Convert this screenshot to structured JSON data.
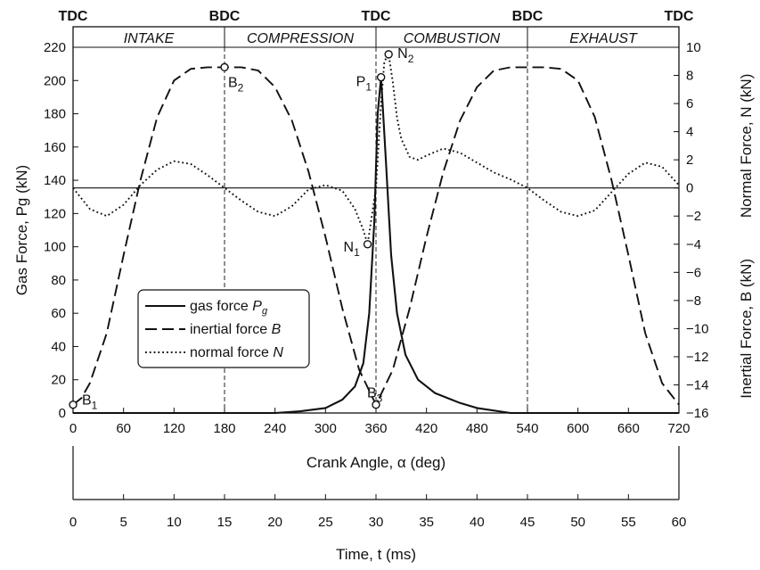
{
  "chart_data": {
    "type": "line",
    "x_primary": {
      "label": "Crank Angle, α (deg)",
      "range": [
        0,
        720
      ],
      "ticks": [
        0,
        60,
        120,
        180,
        240,
        300,
        360,
        420,
        480,
        540,
        600,
        660,
        720
      ]
    },
    "x_secondary": {
      "label": "Time, t (ms)",
      "range": [
        0,
        60
      ],
      "ticks": [
        0,
        5,
        10,
        15,
        20,
        25,
        30,
        35,
        40,
        45,
        50,
        55,
        60
      ]
    },
    "y_left": {
      "label": "Gas Force, Pg (kN)",
      "range": [
        0,
        220
      ],
      "ticks": [
        0,
        20,
        40,
        60,
        80,
        100,
        120,
        140,
        160,
        180,
        200,
        220
      ]
    },
    "y_right_normal": {
      "label": "Normal Force, N (kN)",
      "range": [
        -16,
        10
      ],
      "ticks": [
        10,
        8,
        6,
        4,
        2,
        0,
        -2,
        -4,
        -6,
        -8,
        -10,
        -12,
        -14,
        -16
      ]
    },
    "y_right_inertial": {
      "label": "Inertial Force, B (kN)"
    },
    "dead_centers": [
      {
        "label": "TDC",
        "at": 0
      },
      {
        "label": "BDC",
        "at": 180
      },
      {
        "label": "TDC",
        "at": 360
      },
      {
        "label": "BDC",
        "at": 540
      },
      {
        "label": "TDC",
        "at": 720
      }
    ],
    "phases": [
      {
        "label": "INTAKE",
        "from": 0,
        "to": 180
      },
      {
        "label": "COMPRESSION",
        "from": 180,
        "to": 360
      },
      {
        "label": "COMBUSTION",
        "from": 360,
        "to": 540
      },
      {
        "label": "EXHAUST",
        "from": 540,
        "to": 720
      }
    ],
    "series": [
      {
        "name": "gas force Pg",
        "style": "solid",
        "x": [
          0,
          180,
          240,
          270,
          300,
          320,
          335,
          345,
          352,
          358,
          362,
          366,
          372,
          378,
          385,
          395,
          410,
          430,
          460,
          480,
          520,
          540,
          720
        ],
        "y": [
          0,
          0,
          0,
          1,
          3,
          8,
          16,
          30,
          60,
          115,
          180,
          202,
          150,
          95,
          60,
          35,
          20,
          12,
          6,
          3,
          0,
          0,
          0
        ]
      },
      {
        "name": "inertial force B",
        "style": "dashed",
        "x": [
          0,
          10,
          20,
          40,
          60,
          80,
          100,
          120,
          140,
          160,
          180,
          200,
          220,
          240,
          260,
          280,
          300,
          320,
          340,
          360,
          380,
          400,
          420,
          440,
          460,
          480,
          500,
          520,
          540,
          560,
          580,
          600,
          620,
          640,
          660,
          680,
          700,
          720
        ],
        "y": [
          5,
          9,
          18,
          48,
          95,
          140,
          178,
          200,
          207,
          208,
          208,
          208,
          206,
          196,
          176,
          145,
          106,
          63,
          26,
          5,
          26,
          63,
          106,
          145,
          176,
          196,
          206,
          208,
          208,
          208,
          207,
          200,
          178,
          140,
          95,
          48,
          18,
          5
        ]
      },
      {
        "name": "normal force N",
        "style": "dotted",
        "x": [
          0,
          20,
          40,
          60,
          80,
          100,
          120,
          140,
          160,
          180,
          200,
          220,
          240,
          260,
          280,
          300,
          320,
          335,
          345,
          350,
          355,
          360,
          366,
          370,
          375,
          380,
          385,
          390,
          400,
          410,
          420,
          440,
          460,
          480,
          500,
          520,
          540,
          560,
          580,
          600,
          620,
          640,
          660,
          680,
          700,
          720
        ],
        "y": [
          0,
          -1.5,
          -2,
          -1.2,
          0.2,
          1.3,
          1.9,
          1.7,
          0.9,
          0,
          -0.9,
          -1.7,
          -2,
          -1.3,
          -0.1,
          0.2,
          -0.2,
          -1.5,
          -3,
          -4,
          -2,
          0,
          6,
          9,
          9.5,
          7.5,
          5,
          3.5,
          2.2,
          2,
          2.3,
          2.8,
          2.5,
          1.8,
          1.1,
          0.6,
          0,
          -0.9,
          -1.7,
          -2,
          -1.6,
          -0.3,
          1,
          1.8,
          1.5,
          0.2
        ]
      }
    ],
    "points": [
      {
        "label": "B1",
        "x": 0,
        "y": 5,
        "axis": "left"
      },
      {
        "label": "B2",
        "x": 180,
        "y": 208,
        "axis": "left"
      },
      {
        "label": "B3",
        "x": 360,
        "y": 5,
        "axis": "left"
      },
      {
        "label": "P1",
        "x": 366,
        "y": 202,
        "axis": "left"
      },
      {
        "label": "N1",
        "x": 350,
        "y": -4,
        "axis": "right"
      },
      {
        "label": "N2",
        "x": 375,
        "y": 9.5,
        "axis": "right"
      }
    ],
    "legend": {
      "placement": "center-left",
      "entries": [
        {
          "prefix": "gas force ",
          "var": "P",
          "sub": "g",
          "style": "solid"
        },
        {
          "prefix": "inertial force ",
          "var": "B",
          "sub": "",
          "style": "dashed"
        },
        {
          "prefix": "normal force ",
          "var": "N",
          "sub": "",
          "style": "dotted"
        }
      ]
    }
  }
}
